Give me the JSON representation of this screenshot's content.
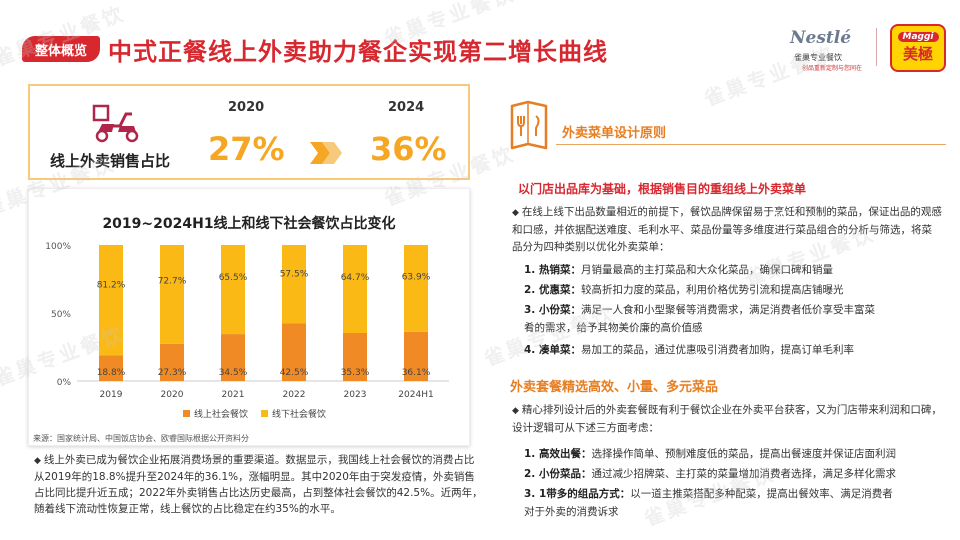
{
  "header": {
    "badge": "整体概览",
    "title": "中式正餐线上外卖助力餐企实现第二增长曲线"
  },
  "logos": {
    "nestle_name": "Nestlé",
    "nestle_sub": "雀巢专业餐饮",
    "nestle_sub2": "创品重新定制与您同在",
    "maggi_name": "Maggi",
    "maggi_cn": "美極"
  },
  "stat": {
    "label": "线上外卖销售占比",
    "year_a": "2020",
    "value_a": "27%",
    "year_b": "2024",
    "value_b": "36%"
  },
  "chart_data": {
    "type": "bar",
    "stacked": true,
    "title": "2019~2024H1线上和线下社会餐饮占比变化",
    "categories": [
      "2019",
      "2020",
      "2021",
      "2022",
      "2023",
      "2024H1"
    ],
    "series": [
      {
        "name": "线上社会餐饮",
        "values": [
          18.8,
          27.3,
          34.5,
          42.5,
          35.3,
          36.1
        ],
        "labels": [
          "18.8%",
          "27.3%",
          "34.5%",
          "42.5%",
          "35.3%",
          "36.1%"
        ],
        "color": "#f08a24"
      },
      {
        "name": "线下社会餐饮",
        "values": [
          81.2,
          72.7,
          65.5,
          57.5,
          64.7,
          63.9
        ],
        "labels": [
          "81.2%",
          "72.7%",
          "65.5%",
          "57.5%",
          "64.7%",
          "63.9%"
        ],
        "color": "#fbb915"
      }
    ],
    "y_ticks": [
      "0%",
      "50%",
      "100%"
    ],
    "ylim": [
      0,
      100
    ],
    "legend_position": "bottom",
    "grid": false,
    "source": "来源：国家统计局、中国饭店协会、欧睿国际根据公开资料分"
  },
  "left_text": {
    "bullet": "◆",
    "body": "线上外卖已成为餐饮企业拓展消费场景的重要渠道。数据显示，我国线上社会餐饮的消费占比从2019年的18.8%提升至2024年的36.1%，涨幅明显。其中2020年由于突发疫情，外卖销售占比同比提升近五成；2022年外卖销售占比达历史最高，占到整体社会餐饮的42.5%。近两年，随着线下流动性恢复正常，线上餐饮的占比稳定在约35%的水平。"
  },
  "right": {
    "section_title": "外卖菜单设计原则",
    "sub1": "以门店出品库为基础，根据销售目的重组线上外卖菜单",
    "bullet": "◆",
    "para1": "在线上线下出品数量相近的前提下，餐饮品牌保留易于烹饪和预制的菜品，保证出品的观感和口感，并依据配送难度、毛利水平、菜品份量等多维度进行菜品组合的分析与筛选，将菜品分为四种类别以优化外卖菜单：",
    "items1": [
      {
        "k": "1. 热销菜：",
        "v": "月销量最高的主打菜品和大众化菜品，确保口碑和销量"
      },
      {
        "k": "2. 优惠菜：",
        "v": "较高折扣力度的菜品，利用价格优势引流和提高店铺曝光"
      },
      {
        "k": "3. 小份菜：",
        "v": "满足一人食和小型聚餐等消费需求，满足消费者低价享受丰富菜"
      },
      {
        "k": "",
        "v": "肴的需求，给予其物美价廉的高价值感"
      },
      {
        "k": "4. 凑单菜：",
        "v": "易加工的菜品，通过优惠吸引消费者加购，提高订单毛利率"
      }
    ],
    "sub2": "外卖套餐精选高效、小量、多元菜品",
    "para2": "精心排列设计后的外卖套餐既有利于餐饮企业在外卖平台获客，又为门店带来利润和口碑，设计逻辑可从下述三方面考虑：",
    "items2": [
      {
        "k": "1. 高效出餐：",
        "v": "选择操作简单、预制难度低的菜品，提高出餐速度并保证店面利润"
      },
      {
        "k": "2. 小份菜品：",
        "v": "通过减少招牌菜、主打菜的菜量增加消费者选择，满足多样化需求"
      },
      {
        "k": "3. 1带多的组品方式：",
        "v": "以一道主推菜搭配多种配菜，提高出餐效率、满足消费者"
      },
      {
        "k": "",
        "v": "对于外卖的消费诉求"
      }
    ]
  },
  "watermark": "雀巢专业餐饮"
}
